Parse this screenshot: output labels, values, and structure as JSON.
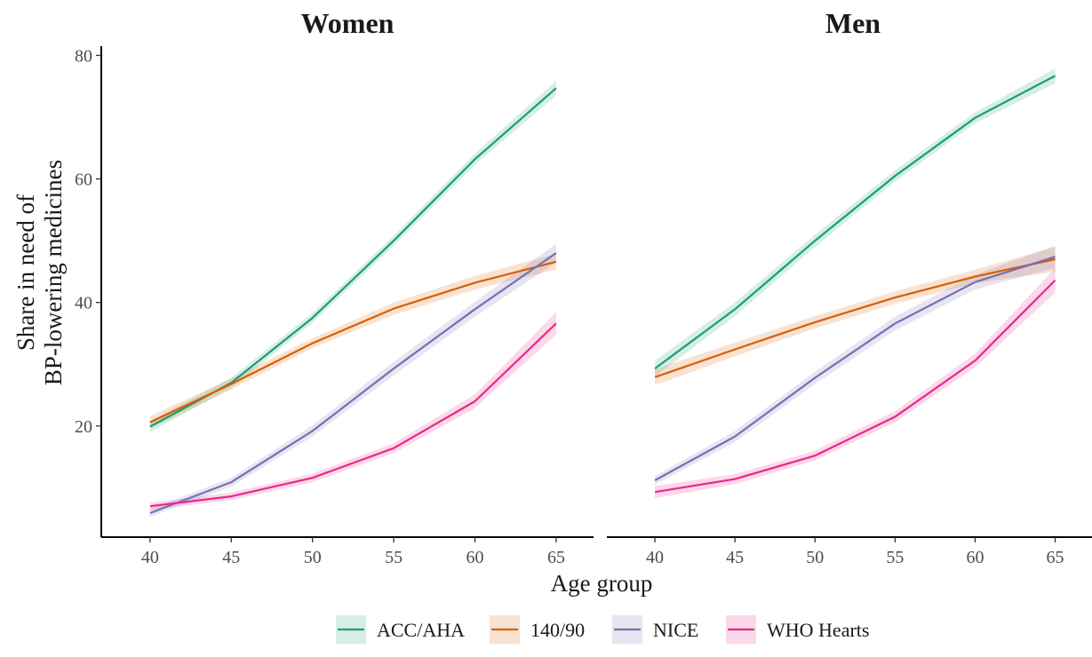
{
  "chart_data": {
    "type": "line",
    "ylabel_lines": [
      "Share in need of",
      "BP-lowering medicines"
    ],
    "xlabel": "Age group",
    "x": [
      40,
      45,
      50,
      55,
      60,
      65
    ],
    "xticks": [
      "40",
      "45",
      "50",
      "55",
      "60",
      "65"
    ],
    "yticks": [
      "20",
      "40",
      "60",
      "80"
    ],
    "xlim": [
      37,
      67.3
    ],
    "ylim": [
      2,
      81.5
    ],
    "legend_position": "bottom",
    "series_styles": [
      {
        "name": "ACC/AHA",
        "color": "#1b9e77",
        "band_opacity": 0.18
      },
      {
        "name": "140/90",
        "color": "#d95f02",
        "band_opacity": 0.18
      },
      {
        "name": "NICE",
        "color": "#7570b3",
        "band_opacity": 0.18
      },
      {
        "name": "WHO Hearts",
        "color": "#e7298a",
        "band_opacity": 0.18
      }
    ],
    "panels": [
      {
        "title": "Women",
        "series": [
          {
            "name": "ACC/AHA",
            "values": [
              19.9,
              27.0,
              37.5,
              50.0,
              63.2,
              74.7
            ],
            "lower": [
              19.0,
              26.2,
              36.7,
              49.2,
              62.3,
              73.5
            ],
            "upper": [
              20.8,
              27.8,
              38.3,
              50.8,
              64.1,
              75.9
            ]
          },
          {
            "name": "140/90",
            "values": [
              20.6,
              26.8,
              33.4,
              39.0,
              43.2,
              46.6
            ],
            "lower": [
              19.6,
              25.9,
              32.6,
              38.0,
              42.1,
              45.3
            ],
            "upper": [
              21.6,
              27.7,
              34.2,
              40.0,
              44.3,
              47.9
            ]
          },
          {
            "name": "NICE",
            "values": [
              5.9,
              10.9,
              19.2,
              29.3,
              38.9,
              48.0
            ],
            "lower": [
              5.3,
              10.2,
              18.3,
              28.2,
              37.7,
              46.5
            ],
            "upper": [
              6.5,
              11.6,
              20.1,
              30.4,
              40.1,
              49.5
            ]
          },
          {
            "name": "WHO Hearts",
            "values": [
              7.0,
              8.6,
              11.6,
              16.4,
              24.0,
              36.6
            ],
            "lower": [
              6.4,
              8.0,
              10.9,
              15.6,
              22.9,
              34.8
            ],
            "upper": [
              7.6,
              9.2,
              12.3,
              17.2,
              25.1,
              38.4
            ]
          }
        ]
      },
      {
        "title": "Men",
        "series": [
          {
            "name": "ACC/AHA",
            "values": [
              29.3,
              38.9,
              50.0,
              60.5,
              69.9,
              76.7
            ],
            "lower": [
              28.0,
              37.8,
              49.0,
              59.6,
              69.0,
              75.5
            ],
            "upper": [
              30.6,
              40.0,
              51.0,
              61.4,
              70.8,
              77.9
            ]
          },
          {
            "name": "140/90",
            "values": [
              27.9,
              32.4,
              36.8,
              40.8,
              44.2,
              47.0
            ],
            "lower": [
              26.6,
              31.3,
              35.8,
              39.8,
              43.1,
              45.0
            ],
            "upper": [
              29.2,
              33.5,
              37.8,
              41.8,
              45.3,
              49.0
            ]
          },
          {
            "name": "NICE",
            "values": [
              11.2,
              18.3,
              27.8,
              36.6,
              43.3,
              47.4
            ],
            "lower": [
              10.5,
              17.4,
              26.8,
              35.5,
              42.1,
              45.6
            ],
            "upper": [
              11.9,
              19.2,
              28.8,
              37.7,
              44.5,
              49.2
            ]
          },
          {
            "name": "WHO Hearts",
            "values": [
              9.3,
              11.4,
              15.2,
              21.5,
              30.6,
              43.6
            ],
            "lower": [
              8.3,
              10.6,
              14.4,
              20.6,
              29.5,
              41.6
            ],
            "upper": [
              10.3,
              12.2,
              16.0,
              22.4,
              31.7,
              45.6
            ]
          }
        ]
      }
    ]
  }
}
